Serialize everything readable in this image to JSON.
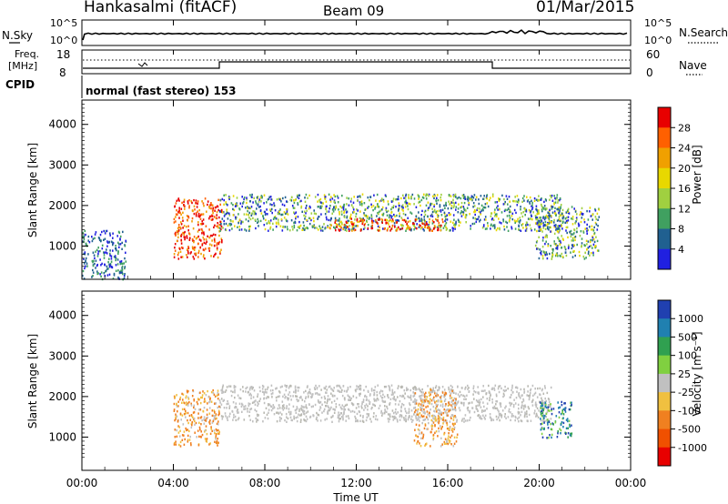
{
  "header": {
    "station": "Hankasalmi (fitACF)",
    "beam": "Beam 09",
    "date": "01/Mar/2015"
  },
  "noise_panel": {
    "left_label": "N.Sky",
    "right_label": "N.Search",
    "left_ticks": [
      "10^5",
      "10^0"
    ],
    "right_ticks": [
      "10^5",
      "10^0"
    ]
  },
  "freq_panel": {
    "label_line1": "Freq.",
    "label_line2": "[MHz]",
    "left_ticks": [
      "18",
      "8"
    ],
    "right_label": "Nave",
    "right_ticks": [
      "60",
      "0"
    ]
  },
  "cpid": {
    "label": "CPID",
    "program": "normal (fast stereo) 153"
  },
  "x_axis": {
    "label": "Time UT",
    "ticks": [
      "00:00",
      "04:00",
      "08:00",
      "12:00",
      "16:00",
      "20:00",
      "00:00"
    ]
  },
  "y_axis": {
    "label": "Slant Range [km]",
    "ticks": [
      "4000",
      "3000",
      "2000",
      "1000"
    ]
  },
  "power_scale": {
    "label": "Power [dB]",
    "ticks": [
      "28",
      "24",
      "20",
      "16",
      "12",
      "8",
      "4"
    ],
    "colors": [
      "#e80000",
      "#ff6000",
      "#f0a000",
      "#e8d800",
      "#a0d040",
      "#40a060",
      "#206090",
      "#2020e0"
    ]
  },
  "velocity_scale": {
    "label": "Velocity [m s⁻¹]",
    "ticks": [
      "1000",
      "500",
      "100",
      "25",
      "-25",
      "-100",
      "-500",
      "-1000"
    ],
    "colors": [
      "#2040b0",
      "#2080b0",
      "#30a050",
      "#80d040",
      "#c0c0c0",
      "#f0c040",
      "#f08020",
      "#f05000",
      "#e80000"
    ]
  },
  "chart_data": {
    "type": "heatmap",
    "title": "Hankasalmi (fitACF)",
    "subtitle": "Beam 09",
    "xlabel": "Time UT",
    "ylabel": "Slant Range [km]",
    "xlim": [
      0,
      24
    ],
    "ylim": [
      180,
      4600
    ],
    "panels": [
      {
        "name": "Power",
        "unit": "dB",
        "colorbar_ticks": [
          4,
          8,
          12,
          16,
          20,
          24,
          28
        ],
        "echo_regions": [
          {
            "t_start": 0.0,
            "t_end": 1.9,
            "r_low": 200,
            "r_high": 1400,
            "level": "weak"
          },
          {
            "t_start": 4.0,
            "t_end": 6.1,
            "r_low": 700,
            "r_high": 2200,
            "level": "strong"
          },
          {
            "t_start": 6.0,
            "t_end": 21.0,
            "r_low": 1400,
            "r_high": 2300,
            "level": "moderate"
          },
          {
            "t_start": 10.8,
            "t_end": 15.8,
            "r_low": 1400,
            "r_high": 1700,
            "level": "strong"
          },
          {
            "t_start": 19.8,
            "t_end": 22.6,
            "r_low": 700,
            "r_high": 2000,
            "level": "moderate"
          }
        ]
      },
      {
        "name": "Velocity",
        "unit": "m s-1",
        "colorbar_ticks": [
          -1000,
          -500,
          -100,
          -25,
          25,
          100,
          500,
          1000
        ],
        "echo_regions": [
          {
            "t_start": 6.0,
            "t_end": 20.5,
            "r_low": 1400,
            "r_high": 2300,
            "level": "ground scatter"
          },
          {
            "t_start": 4.0,
            "t_end": 6.0,
            "r_low": 800,
            "r_high": 2200,
            "level": "negative"
          },
          {
            "t_start": 14.5,
            "t_end": 16.4,
            "r_low": 800,
            "r_high": 2200,
            "level": "negative"
          },
          {
            "t_start": 20.0,
            "t_end": 21.4,
            "r_low": 1000,
            "r_high": 1900,
            "level": "positive"
          }
        ]
      }
    ]
  }
}
